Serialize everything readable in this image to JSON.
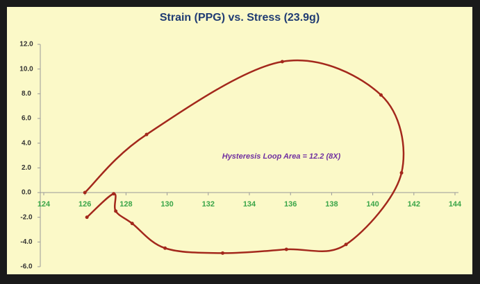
{
  "chart_data": {
    "type": "scatter-line",
    "title": "Strain (PPG) vs. Stress (23.9g)",
    "annotation": "Hysteresis Loop Area = 12.2 (8X)",
    "x": [
      126.0,
      129.0,
      135.6,
      140.4,
      141.4,
      138.7,
      135.8,
      132.7,
      129.9,
      128.3,
      127.5,
      127.4,
      126.1
    ],
    "values": [
      0.0,
      4.7,
      10.6,
      7.9,
      1.6,
      -4.2,
      -4.6,
      -4.9,
      -4.5,
      -2.5,
      -1.5,
      -0.1,
      -2.0
    ],
    "color": "#a3281c",
    "xlim": [
      124,
      144
    ],
    "xticks": [
      124,
      126,
      128,
      130,
      132,
      134,
      136,
      138,
      140,
      142,
      144
    ],
    "ylim": [
      -6,
      12
    ],
    "yticks": [
      {
        "value": -6,
        "label": "-6.0"
      },
      {
        "value": -4,
        "label": "-4.0"
      },
      {
        "value": -2,
        "label": "-2.0"
      },
      {
        "value": 0,
        "label": "0.0"
      },
      {
        "value": 2,
        "label": "2.0"
      },
      {
        "value": 4,
        "label": "4.0"
      },
      {
        "value": 6,
        "label": "6.0"
      },
      {
        "value": 8,
        "label": "8.0"
      },
      {
        "value": 10,
        "label": "10.0"
      },
      {
        "value": 12,
        "label": "12.0"
      }
    ],
    "grid": false
  }
}
